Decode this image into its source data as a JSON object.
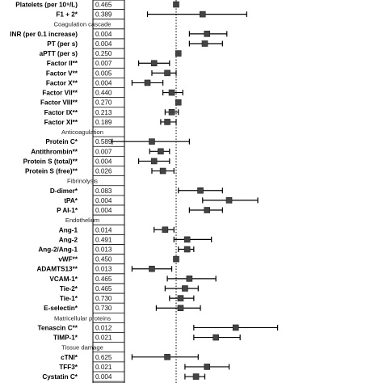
{
  "chart_data": {
    "type": "forest",
    "title": "",
    "xlabel": "",
    "ylabel": "",
    "reference_line": {
      "style": "dotted"
    },
    "rows": [
      {
        "label": "Platelets (per 10⁹/L)",
        "kind": "item",
        "p": "0.465",
        "est": 0.0,
        "lo": null,
        "hi": null
      },
      {
        "label": "F1 + 2*",
        "kind": "item",
        "p": "0.389",
        "est": 0.12,
        "lo": -0.13,
        "hi": 0.32
      },
      {
        "label": "Coagulation cascade",
        "kind": "header"
      },
      {
        "label": "INR (per 0.1 increase)",
        "kind": "item",
        "p": "0.004",
        "est": 0.14,
        "lo": 0.06,
        "hi": 0.23
      },
      {
        "label": "PT (per s)",
        "kind": "item",
        "p": "0.004",
        "est": 0.13,
        "lo": 0.06,
        "hi": 0.21
      },
      {
        "label": "aPTT (per s)",
        "kind": "item",
        "p": "0.250",
        "est": 0.01,
        "lo": null,
        "hi": null
      },
      {
        "label": "Factor II**",
        "kind": "item",
        "p": "0.007",
        "est": -0.1,
        "lo": -0.17,
        "hi": -0.03
      },
      {
        "label": "Factor V**",
        "kind": "item",
        "p": "0.005",
        "est": -0.04,
        "lo": -0.11,
        "hi": 0.0
      },
      {
        "label": "Factor X**",
        "kind": "item",
        "p": "0.004",
        "est": -0.13,
        "lo": -0.2,
        "hi": -0.06
      },
      {
        "label": "Factor VII**",
        "kind": "item",
        "p": "0.440",
        "est": -0.02,
        "lo": -0.06,
        "hi": 0.03
      },
      {
        "label": "Factor VIII**",
        "kind": "item",
        "p": "0.270",
        "est": 0.01,
        "lo": null,
        "hi": null
      },
      {
        "label": "Factor IX**",
        "kind": "item",
        "p": "0.213",
        "est": -0.02,
        "lo": -0.05,
        "hi": 0.01
      },
      {
        "label": "Factor XI**",
        "kind": "item",
        "p": "0.189",
        "est": -0.04,
        "lo": -0.07,
        "hi": 0.0
      },
      {
        "label": "Anticoagulation",
        "kind": "header"
      },
      {
        "label": "Protein C*",
        "kind": "item",
        "p": "0.589",
        "est": -0.11,
        "lo": -0.29,
        "hi": 0.06
      },
      {
        "label": "Antithrombin**",
        "kind": "item",
        "p": "0.007",
        "est": -0.07,
        "lo": -0.12,
        "hi": -0.03
      },
      {
        "label": "Protein S (total)**",
        "kind": "item",
        "p": "0.004",
        "est": -0.1,
        "lo": -0.17,
        "hi": -0.03
      },
      {
        "label": "Protein S (free)**",
        "kind": "item",
        "p": "0.026",
        "est": -0.06,
        "lo": -0.11,
        "hi": -0.01
      },
      {
        "label": "Fibrinolysis",
        "kind": "header"
      },
      {
        "label": "D-dimer*",
        "kind": "item",
        "p": "0.083",
        "est": 0.11,
        "lo": 0.01,
        "hi": 0.21
      },
      {
        "label": "tPA*",
        "kind": "item",
        "p": "0.004",
        "est": 0.24,
        "lo": 0.12,
        "hi": 0.37
      },
      {
        "label": "P AI-1*",
        "kind": "item",
        "p": "0.004",
        "est": 0.14,
        "lo": 0.06,
        "hi": 0.21
      },
      {
        "label": "Endothelium",
        "kind": "header"
      },
      {
        "label": "Ang-1",
        "kind": "item",
        "p": "0.014",
        "est": -0.05,
        "lo": -0.1,
        "hi": -0.01
      },
      {
        "label": "Ang-2",
        "kind": "item",
        "p": "0.491",
        "est": 0.05,
        "lo": -0.01,
        "hi": 0.16
      },
      {
        "label": "Ang-2/Ang-1",
        "kind": "item",
        "p": "0.013",
        "est": 0.05,
        "lo": 0.01,
        "hi": 0.08
      },
      {
        "label": "vWF**",
        "kind": "item",
        "p": "0.450",
        "est": 0.0,
        "lo": null,
        "hi": null
      },
      {
        "label": "ADAMTS13**",
        "kind": "item",
        "p": "0.013",
        "est": -0.11,
        "lo": -0.2,
        "hi": -0.02
      },
      {
        "label": "VCAM-1*",
        "kind": "item",
        "p": "0.465",
        "est": 0.06,
        "lo": -0.04,
        "hi": 0.18
      },
      {
        "label": "Tie-2*",
        "kind": "item",
        "p": "0.465",
        "est": 0.04,
        "lo": -0.05,
        "hi": 0.1
      },
      {
        "label": "Tie-1*",
        "kind": "item",
        "p": "0.730",
        "est": 0.02,
        "lo": -0.03,
        "hi": 0.08
      },
      {
        "label": "E-selectin*",
        "kind": "item",
        "p": "0.730",
        "est": 0.02,
        "lo": -0.09,
        "hi": 0.11
      },
      {
        "label": "Matricellular proteins",
        "kind": "header"
      },
      {
        "label": "Tenascin C**",
        "kind": "item",
        "p": "0.012",
        "est": 0.27,
        "lo": 0.08,
        "hi": 0.46
      },
      {
        "label": "TIMP-1*",
        "kind": "item",
        "p": "0.021",
        "est": 0.18,
        "lo": 0.08,
        "hi": 0.29
      },
      {
        "label": "Tissue damage",
        "kind": "header"
      },
      {
        "label": "cTNI*",
        "kind": "item",
        "p": "0.625",
        "est": -0.04,
        "lo": -0.2,
        "hi": 0.1
      },
      {
        "label": "TFF3*",
        "kind": "item",
        "p": "0.021",
        "est": 0.14,
        "lo": 0.04,
        "hi": 0.24
      },
      {
        "label": "Cystatin C*",
        "kind": "item",
        "p": "0.004",
        "est": 0.09,
        "lo": 0.04,
        "hi": 0.13
      }
    ]
  }
}
